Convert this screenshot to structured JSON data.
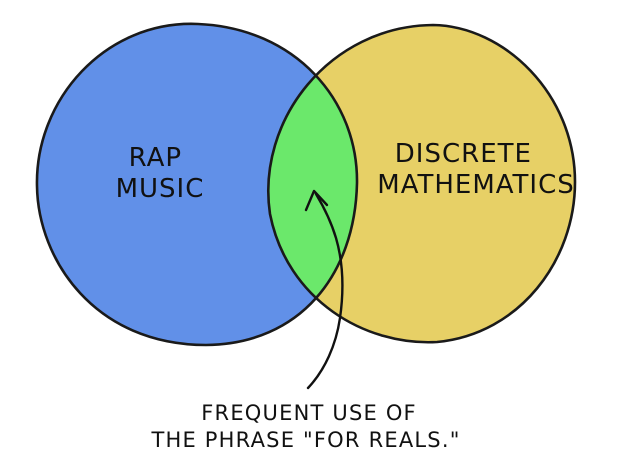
{
  "sets": {
    "left": {
      "lines": [
        "RAP",
        "MUSIC"
      ],
      "color": "#6190e8"
    },
    "right": {
      "lines": [
        "DISCRETE",
        "MATHEMATICS"
      ],
      "color": "#e7d066"
    },
    "overlap": {
      "color": "#6be86b"
    }
  },
  "annotation": {
    "lines": [
      "FREQUENT USE OF",
      "THE PHRASE \"FOR REALS.\""
    ]
  },
  "outline_color": "#1a1a1a"
}
